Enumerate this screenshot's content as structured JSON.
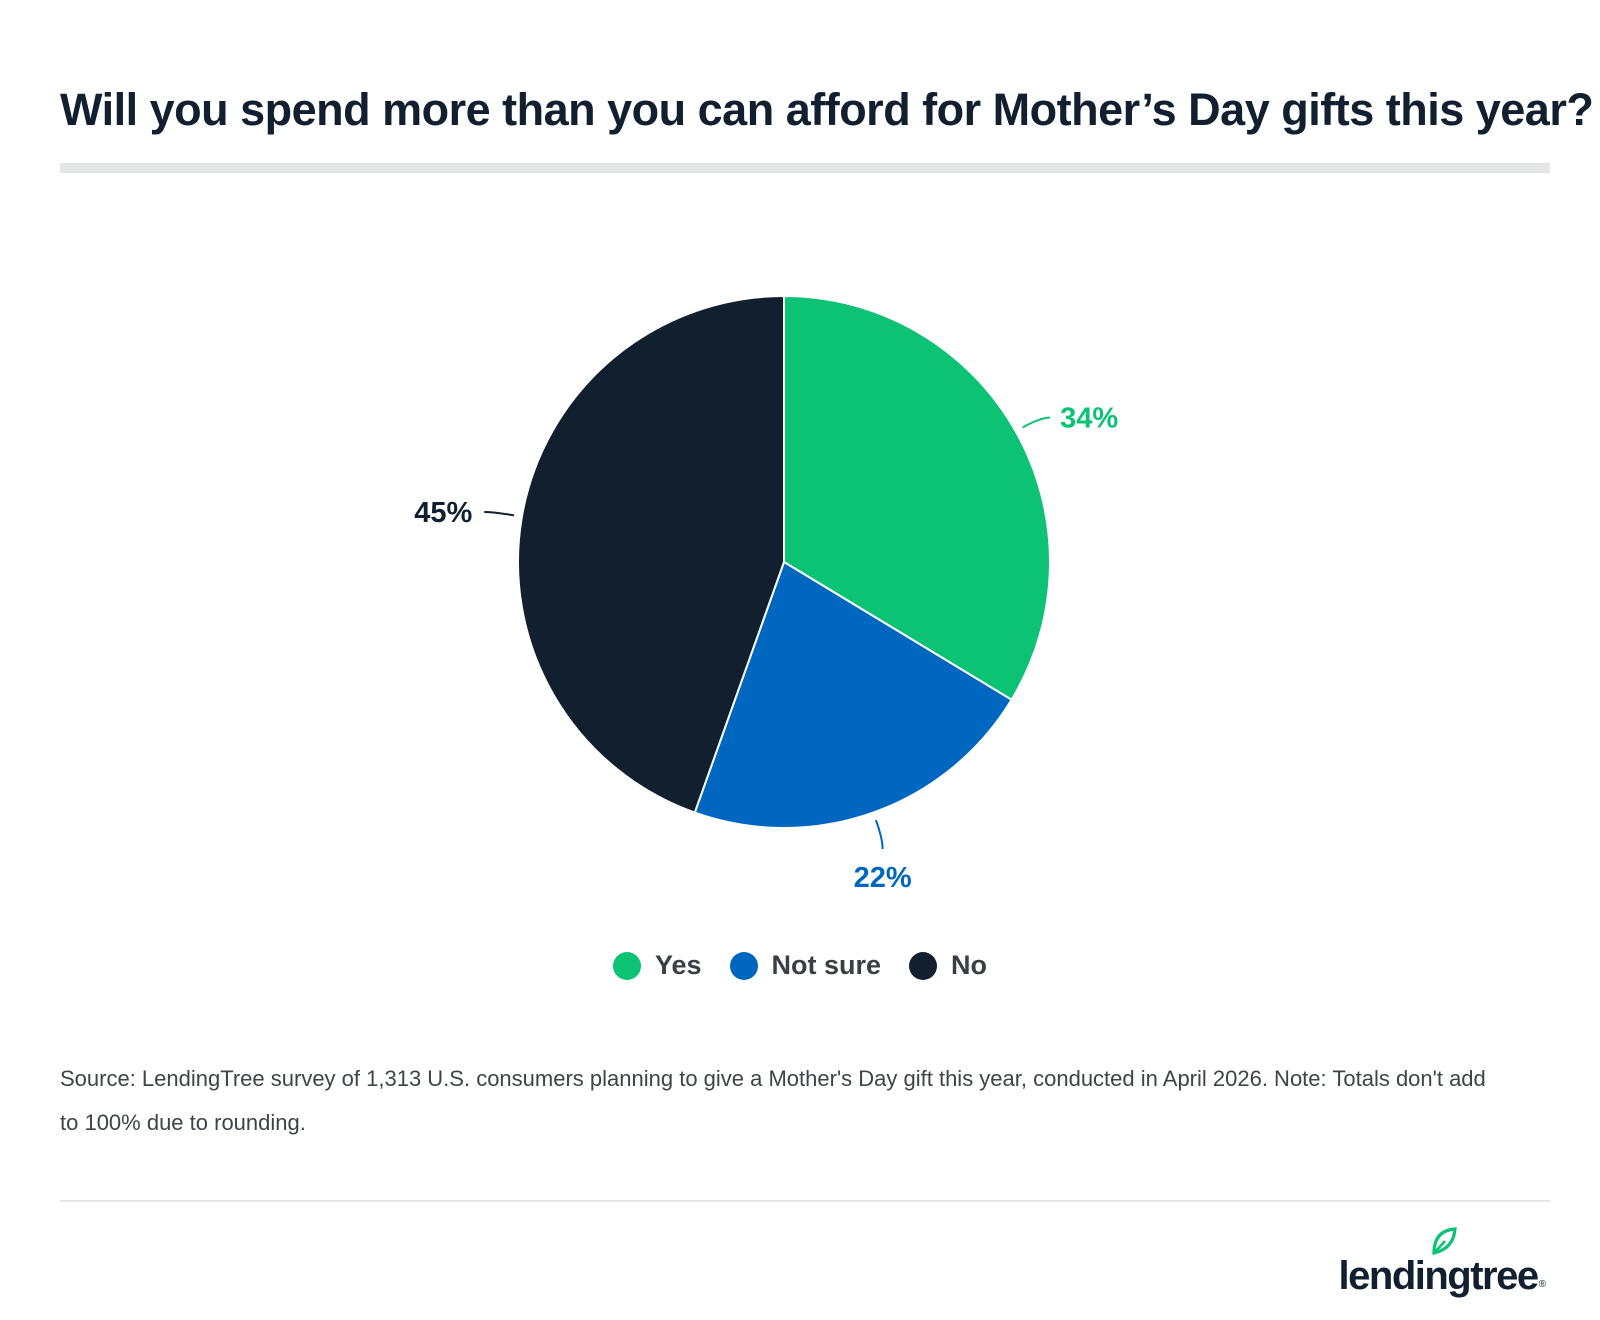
{
  "title": "Will you spend more than you can afford for Mother’s Day gifts this year?",
  "chart_data": {
    "type": "pie",
    "slices": [
      {
        "name": "Yes",
        "value": 34,
        "label": "34%",
        "color": "#0bc275"
      },
      {
        "name": "Not sure",
        "value": 22,
        "label": "22%",
        "color": "#0067c0"
      },
      {
        "name": "No",
        "value": 45,
        "label": "45%",
        "color": "#111f2e"
      }
    ],
    "legend_position": "bottom"
  },
  "legend": [
    {
      "label": "Yes",
      "color": "#0bc275"
    },
    {
      "label": "Not sure",
      "color": "#0067c0"
    },
    {
      "label": "No",
      "color": "#111f2e"
    }
  ],
  "source": "Source: LendingTree survey of 1,313 U.S. consumers planning to give a Mother's Day gift this year, conducted in April 2026. Note: Totals don't add to 100% due to rounding.",
  "logo": {
    "text": "lendingtree",
    "accent_color": "#0bc275"
  }
}
